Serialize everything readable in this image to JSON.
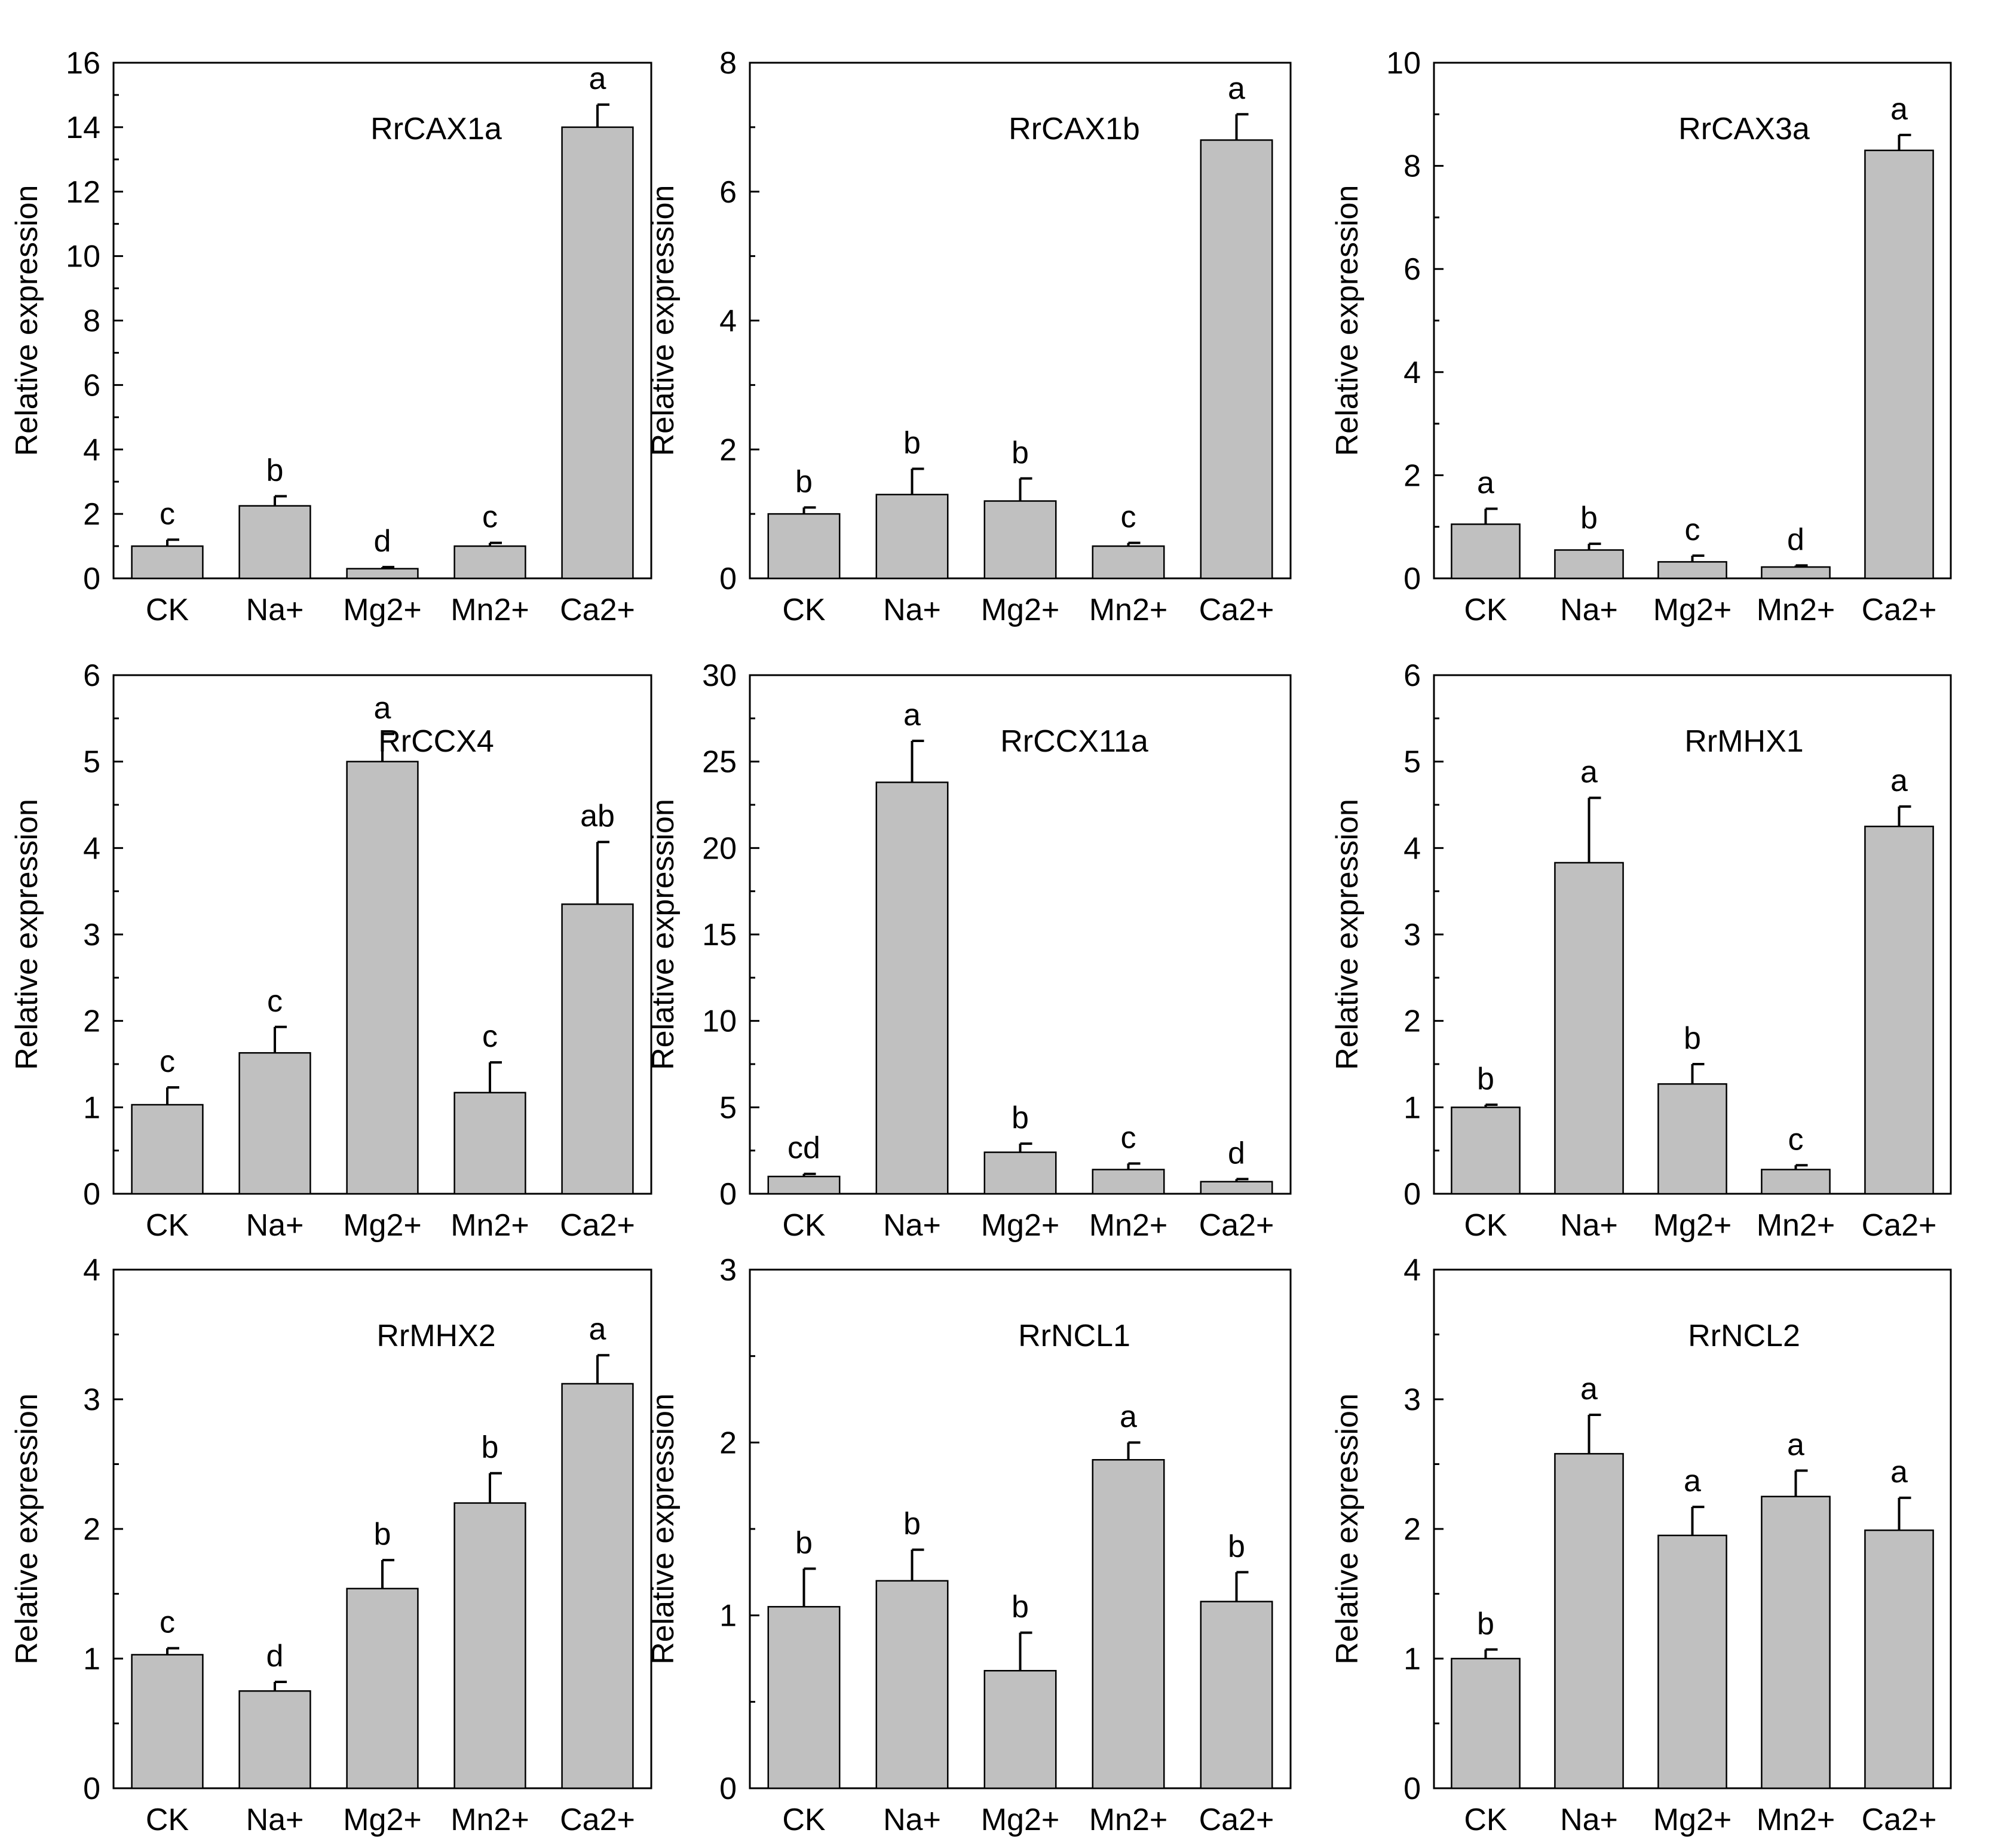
{
  "figure": {
    "categories": [
      "CK",
      "Na+",
      "Mg2+",
      "Mn2+",
      "Ca2+"
    ],
    "ylabel": "Relative expression",
    "bar_color": "#c0c0c0",
    "line_color": "#000000"
  },
  "chart_data": [
    {
      "type": "bar",
      "title": "RrCAX1a",
      "categories": [
        "CK",
        "Na+",
        "Mg2+",
        "Mn2+",
        "Ca2+"
      ],
      "values": [
        1.0,
        2.25,
        0.3,
        1.0,
        14.0
      ],
      "errors": [
        0.2,
        0.3,
        0.05,
        0.1,
        0.7
      ],
      "letters": [
        "c",
        "b",
        "d",
        "c",
        "a"
      ],
      "ylabel": "Relative expression",
      "ylim": [
        0,
        16
      ],
      "yticks": [
        0,
        2,
        4,
        6,
        8,
        10,
        12,
        14,
        16
      ],
      "grid": false
    },
    {
      "type": "bar",
      "title": "RrCAX1b",
      "categories": [
        "CK",
        "Na+",
        "Mg2+",
        "Mn2+",
        "Ca2+"
      ],
      "values": [
        1.0,
        1.3,
        1.2,
        0.5,
        6.8
      ],
      "errors": [
        0.1,
        0.4,
        0.35,
        0.05,
        0.4
      ],
      "letters": [
        "b",
        "b",
        "b",
        "c",
        "a"
      ],
      "ylabel": "Relative expression",
      "ylim": [
        0,
        8
      ],
      "yticks": [
        0,
        2,
        4,
        6,
        8
      ],
      "grid": false
    },
    {
      "type": "bar",
      "title": "RrCAX3a",
      "categories": [
        "CK",
        "Na+",
        "Mg2+",
        "Mn2+",
        "Ca2+"
      ],
      "values": [
        1.05,
        0.55,
        0.32,
        0.22,
        8.3
      ],
      "errors": [
        0.3,
        0.12,
        0.12,
        0.03,
        0.3
      ],
      "letters": [
        "a",
        "b",
        "c",
        "d",
        "a"
      ],
      "ylabel": "Relative expression",
      "ylim": [
        0,
        10
      ],
      "yticks": [
        0,
        2,
        4,
        6,
        8,
        10
      ],
      "grid": false
    },
    {
      "type": "bar",
      "title": "RrCCX4",
      "categories": [
        "CK",
        "Na+",
        "Mg2+",
        "Mn2+",
        "Ca2+"
      ],
      "values": [
        1.03,
        1.63,
        5.0,
        1.17,
        3.35
      ],
      "errors": [
        0.2,
        0.3,
        0.32,
        0.35,
        0.72
      ],
      "letters": [
        "c",
        "c",
        "a",
        "c",
        "ab"
      ],
      "ylabel": "Relative expression",
      "ylim": [
        0,
        6
      ],
      "yticks": [
        0,
        1,
        2,
        3,
        4,
        5,
        6
      ],
      "grid": false
    },
    {
      "type": "bar",
      "title": "RrCCX11a",
      "categories": [
        "CK",
        "Na+",
        "Mg2+",
        "Mn2+",
        "Ca2+"
      ],
      "values": [
        1.0,
        23.8,
        2.4,
        1.4,
        0.7
      ],
      "errors": [
        0.15,
        2.4,
        0.5,
        0.35,
        0.15
      ],
      "letters": [
        "cd",
        "a",
        "b",
        "c",
        "d"
      ],
      "ylabel": "Relative expression",
      "ylim": [
        0,
        30
      ],
      "yticks": [
        0,
        5,
        10,
        15,
        20,
        25,
        30
      ],
      "grid": false
    },
    {
      "type": "bar",
      "title": "RrMHX1",
      "categories": [
        "CK",
        "Na+",
        "Mg2+",
        "Mn2+",
        "Ca2+"
      ],
      "values": [
        1.0,
        3.83,
        1.27,
        0.28,
        4.25
      ],
      "errors": [
        0.03,
        0.75,
        0.23,
        0.05,
        0.23
      ],
      "letters": [
        "b",
        "a",
        "b",
        "c",
        "a"
      ],
      "ylabel": "Relative expression",
      "ylim": [
        0,
        6
      ],
      "yticks": [
        0,
        1,
        2,
        3,
        4,
        5,
        6
      ],
      "grid": false
    },
    {
      "type": "bar",
      "title": "RrMHX2",
      "categories": [
        "CK",
        "Na+",
        "Mg2+",
        "Mn2+",
        "Ca2+"
      ],
      "values": [
        1.03,
        0.75,
        1.54,
        2.2,
        3.12
      ],
      "errors": [
        0.05,
        0.07,
        0.22,
        0.23,
        0.22
      ],
      "letters": [
        "c",
        "d",
        "b",
        "b",
        "a"
      ],
      "ylabel": "Relative expression",
      "ylim": [
        0,
        4
      ],
      "yticks": [
        0,
        1,
        2,
        3,
        4
      ],
      "grid": false
    },
    {
      "type": "bar",
      "title": "RrNCL1",
      "categories": [
        "CK",
        "Na+",
        "Mg2+",
        "Mn2+",
        "Ca2+"
      ],
      "values": [
        1.05,
        1.2,
        0.68,
        1.9,
        1.08
      ],
      "errors": [
        0.22,
        0.18,
        0.22,
        0.1,
        0.17
      ],
      "letters": [
        "b",
        "b",
        "b",
        "a",
        "b"
      ],
      "ylabel": "Relative expression",
      "ylim": [
        0,
        3
      ],
      "yticks": [
        0,
        1,
        2,
        3
      ],
      "grid": false
    },
    {
      "type": "bar",
      "title": "RrNCL2",
      "categories": [
        "CK",
        "Na+",
        "Mg2+",
        "Mn2+",
        "Ca2+"
      ],
      "values": [
        1.0,
        2.58,
        1.95,
        2.25,
        1.99
      ],
      "errors": [
        0.07,
        0.3,
        0.22,
        0.2,
        0.25
      ],
      "letters": [
        "b",
        "a",
        "a",
        "a",
        "a"
      ],
      "ylabel": "Relative expression",
      "ylim": [
        0,
        4
      ],
      "yticks": [
        0,
        1,
        2,
        3,
        4
      ],
      "grid": false
    }
  ]
}
